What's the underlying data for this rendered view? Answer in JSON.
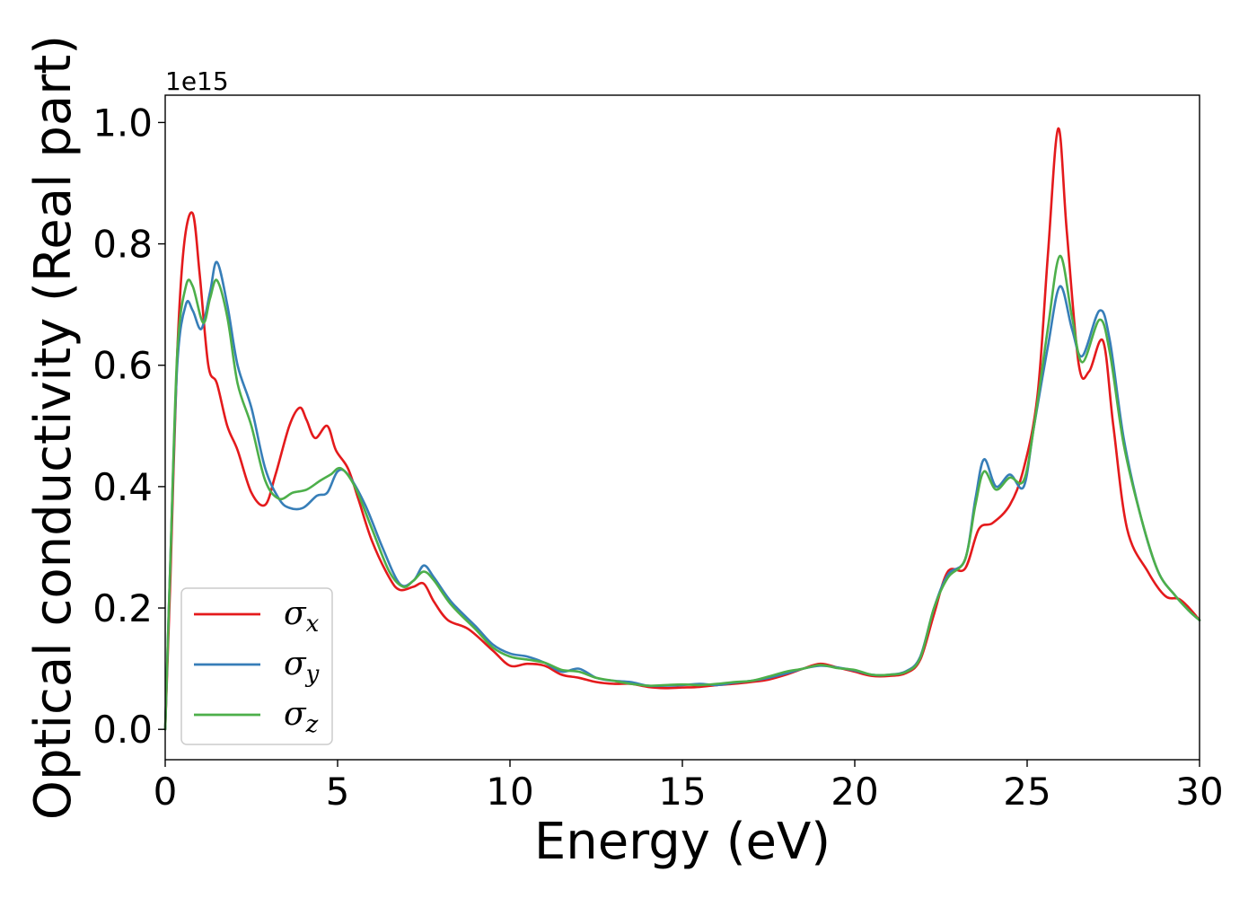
{
  "chart_data": {
    "type": "line",
    "xlabel": "Energy (eV)",
    "ylabel": "Optical conductivity (Real part)",
    "y_offset_label": "1e15",
    "xlim": [
      0,
      30
    ],
    "ylim": [
      -0.05,
      1.045
    ],
    "x_ticks": [
      "0",
      "5",
      "10",
      "15",
      "20",
      "25",
      "30"
    ],
    "y_ticks": [
      "0.0",
      "0.2",
      "0.4",
      "0.6",
      "0.8",
      "1.0"
    ],
    "grid": false,
    "legend_position": "lower-left",
    "colors": {
      "sigma_x": "#e41a1c",
      "sigma_y": "#377eb8",
      "sigma_z": "#4daf4a"
    },
    "series": [
      {
        "name": "σx",
        "base": "σ",
        "sub": "x",
        "color": "#e41a1c",
        "points": [
          [
            0,
            0
          ],
          [
            0.15,
            0.25
          ],
          [
            0.35,
            0.62
          ],
          [
            0.55,
            0.8
          ],
          [
            0.8,
            0.85
          ],
          [
            1.0,
            0.75
          ],
          [
            1.25,
            0.6
          ],
          [
            1.5,
            0.57
          ],
          [
            1.8,
            0.5
          ],
          [
            2.1,
            0.46
          ],
          [
            2.5,
            0.39
          ],
          [
            2.9,
            0.37
          ],
          [
            3.2,
            0.42
          ],
          [
            3.6,
            0.5
          ],
          [
            3.9,
            0.53
          ],
          [
            4.1,
            0.51
          ],
          [
            4.35,
            0.48
          ],
          [
            4.7,
            0.5
          ],
          [
            4.95,
            0.46
          ],
          [
            5.3,
            0.43
          ],
          [
            5.6,
            0.38
          ],
          [
            6.0,
            0.31
          ],
          [
            6.5,
            0.25
          ],
          [
            6.8,
            0.23
          ],
          [
            7.2,
            0.235
          ],
          [
            7.5,
            0.24
          ],
          [
            7.8,
            0.21
          ],
          [
            8.2,
            0.18
          ],
          [
            8.8,
            0.165
          ],
          [
            9.5,
            0.13
          ],
          [
            10.0,
            0.105
          ],
          [
            10.5,
            0.108
          ],
          [
            11.0,
            0.105
          ],
          [
            11.5,
            0.09
          ],
          [
            12.0,
            0.085
          ],
          [
            12.5,
            0.078
          ],
          [
            13.0,
            0.075
          ],
          [
            13.5,
            0.075
          ],
          [
            14.0,
            0.07
          ],
          [
            14.5,
            0.068
          ],
          [
            15.0,
            0.069
          ],
          [
            15.5,
            0.07
          ],
          [
            16.0,
            0.073
          ],
          [
            16.5,
            0.075
          ],
          [
            17.0,
            0.078
          ],
          [
            17.5,
            0.082
          ],
          [
            18.0,
            0.09
          ],
          [
            18.5,
            0.1
          ],
          [
            19.0,
            0.108
          ],
          [
            19.5,
            0.102
          ],
          [
            20.0,
            0.095
          ],
          [
            20.5,
            0.088
          ],
          [
            21.0,
            0.088
          ],
          [
            21.5,
            0.093
          ],
          [
            21.9,
            0.115
          ],
          [
            22.3,
            0.19
          ],
          [
            22.7,
            0.26
          ],
          [
            23.2,
            0.265
          ],
          [
            23.6,
            0.33
          ],
          [
            24.0,
            0.34
          ],
          [
            24.5,
            0.37
          ],
          [
            24.9,
            0.43
          ],
          [
            25.3,
            0.55
          ],
          [
            25.6,
            0.78
          ],
          [
            25.9,
            0.99
          ],
          [
            26.15,
            0.82
          ],
          [
            26.5,
            0.6
          ],
          [
            26.8,
            0.59
          ],
          [
            27.2,
            0.64
          ],
          [
            27.5,
            0.5
          ],
          [
            27.9,
            0.33
          ],
          [
            28.5,
            0.26
          ],
          [
            29.0,
            0.22
          ],
          [
            29.4,
            0.215
          ],
          [
            29.7,
            0.2
          ],
          [
            30.0,
            0.18
          ]
        ]
      },
      {
        "name": "σy",
        "base": "σ",
        "sub": "y",
        "color": "#377eb8",
        "points": [
          [
            0,
            0
          ],
          [
            0.15,
            0.28
          ],
          [
            0.35,
            0.6
          ],
          [
            0.6,
            0.7
          ],
          [
            0.8,
            0.69
          ],
          [
            1.05,
            0.66
          ],
          [
            1.3,
            0.72
          ],
          [
            1.5,
            0.77
          ],
          [
            1.8,
            0.7
          ],
          [
            2.1,
            0.6
          ],
          [
            2.5,
            0.53
          ],
          [
            2.9,
            0.43
          ],
          [
            3.3,
            0.38
          ],
          [
            3.6,
            0.365
          ],
          [
            4.0,
            0.365
          ],
          [
            4.4,
            0.385
          ],
          [
            4.7,
            0.39
          ],
          [
            5.0,
            0.425
          ],
          [
            5.3,
            0.42
          ],
          [
            5.8,
            0.37
          ],
          [
            6.3,
            0.3
          ],
          [
            6.8,
            0.24
          ],
          [
            7.2,
            0.245
          ],
          [
            7.5,
            0.27
          ],
          [
            7.8,
            0.25
          ],
          [
            8.3,
            0.21
          ],
          [
            9.0,
            0.17
          ],
          [
            9.5,
            0.14
          ],
          [
            10.0,
            0.125
          ],
          [
            10.5,
            0.12
          ],
          [
            11.0,
            0.11
          ],
          [
            11.5,
            0.095
          ],
          [
            12.0,
            0.1
          ],
          [
            12.5,
            0.085
          ],
          [
            13.0,
            0.08
          ],
          [
            13.5,
            0.078
          ],
          [
            14.0,
            0.072
          ],
          [
            14.5,
            0.072
          ],
          [
            15.0,
            0.073
          ],
          [
            15.5,
            0.075
          ],
          [
            16.0,
            0.073
          ],
          [
            16.5,
            0.077
          ],
          [
            17.0,
            0.08
          ],
          [
            17.5,
            0.085
          ],
          [
            18.0,
            0.092
          ],
          [
            18.5,
            0.1
          ],
          [
            19.0,
            0.105
          ],
          [
            19.5,
            0.102
          ],
          [
            20.0,
            0.097
          ],
          [
            20.5,
            0.09
          ],
          [
            21.0,
            0.09
          ],
          [
            21.5,
            0.096
          ],
          [
            21.9,
            0.12
          ],
          [
            22.3,
            0.2
          ],
          [
            22.7,
            0.255
          ],
          [
            23.2,
            0.28
          ],
          [
            23.5,
            0.38
          ],
          [
            23.75,
            0.445
          ],
          [
            24.1,
            0.4
          ],
          [
            24.5,
            0.42
          ],
          [
            24.9,
            0.4
          ],
          [
            25.2,
            0.5
          ],
          [
            25.6,
            0.63
          ],
          [
            25.95,
            0.73
          ],
          [
            26.3,
            0.66
          ],
          [
            26.6,
            0.615
          ],
          [
            27.1,
            0.69
          ],
          [
            27.4,
            0.64
          ],
          [
            27.8,
            0.48
          ],
          [
            28.3,
            0.35
          ],
          [
            28.8,
            0.26
          ],
          [
            29.3,
            0.22
          ],
          [
            29.7,
            0.195
          ],
          [
            30.0,
            0.18
          ]
        ]
      },
      {
        "name": "σz",
        "base": "σ",
        "sub": "z",
        "color": "#4daf4a",
        "points": [
          [
            0,
            0
          ],
          [
            0.15,
            0.28
          ],
          [
            0.35,
            0.62
          ],
          [
            0.6,
            0.73
          ],
          [
            0.8,
            0.73
          ],
          [
            1.1,
            0.67
          ],
          [
            1.3,
            0.71
          ],
          [
            1.5,
            0.74
          ],
          [
            1.8,
            0.68
          ],
          [
            2.1,
            0.57
          ],
          [
            2.5,
            0.5
          ],
          [
            2.9,
            0.41
          ],
          [
            3.3,
            0.38
          ],
          [
            3.7,
            0.39
          ],
          [
            4.1,
            0.395
          ],
          [
            4.5,
            0.41
          ],
          [
            4.8,
            0.42
          ],
          [
            5.1,
            0.43
          ],
          [
            5.5,
            0.4
          ],
          [
            6.0,
            0.33
          ],
          [
            6.5,
            0.26
          ],
          [
            6.9,
            0.235
          ],
          [
            7.2,
            0.245
          ],
          [
            7.5,
            0.26
          ],
          [
            7.8,
            0.245
          ],
          [
            8.3,
            0.205
          ],
          [
            9.0,
            0.165
          ],
          [
            9.5,
            0.135
          ],
          [
            10.0,
            0.12
          ],
          [
            10.5,
            0.115
          ],
          [
            11.0,
            0.11
          ],
          [
            11.5,
            0.098
          ],
          [
            12.0,
            0.095
          ],
          [
            12.5,
            0.085
          ],
          [
            13.0,
            0.08
          ],
          [
            13.5,
            0.075
          ],
          [
            14.0,
            0.072
          ],
          [
            14.5,
            0.073
          ],
          [
            15.0,
            0.074
          ],
          [
            15.5,
            0.073
          ],
          [
            16.0,
            0.075
          ],
          [
            16.5,
            0.078
          ],
          [
            17.0,
            0.08
          ],
          [
            17.5,
            0.087
          ],
          [
            18.0,
            0.095
          ],
          [
            18.5,
            0.1
          ],
          [
            19.0,
            0.106
          ],
          [
            19.5,
            0.101
          ],
          [
            20.0,
            0.098
          ],
          [
            20.5,
            0.09
          ],
          [
            21.0,
            0.09
          ],
          [
            21.5,
            0.095
          ],
          [
            21.9,
            0.118
          ],
          [
            22.3,
            0.2
          ],
          [
            22.7,
            0.25
          ],
          [
            23.2,
            0.28
          ],
          [
            23.5,
            0.37
          ],
          [
            23.75,
            0.425
          ],
          [
            24.1,
            0.395
          ],
          [
            24.5,
            0.415
          ],
          [
            24.9,
            0.41
          ],
          [
            25.2,
            0.5
          ],
          [
            25.6,
            0.66
          ],
          [
            25.95,
            0.78
          ],
          [
            26.3,
            0.68
          ],
          [
            26.6,
            0.605
          ],
          [
            27.1,
            0.675
          ],
          [
            27.4,
            0.62
          ],
          [
            27.8,
            0.47
          ],
          [
            28.3,
            0.35
          ],
          [
            28.8,
            0.26
          ],
          [
            29.3,
            0.22
          ],
          [
            29.7,
            0.195
          ],
          [
            30.0,
            0.18
          ]
        ]
      }
    ]
  }
}
